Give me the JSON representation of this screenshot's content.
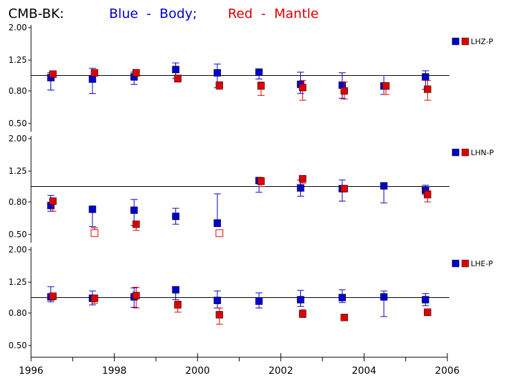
{
  "title": {
    "prefix": "CMB-BK:",
    "blue_text": "Blue  -  Body;",
    "red_text": "Red  -  Mantle"
  },
  "colors": {
    "body": "#0000cc",
    "mantle": "#dd0000",
    "axis": "#000000"
  },
  "chart_data": [
    {
      "type": "scatter",
      "label": "LHZ-P",
      "ylim": [
        0.5,
        2.0
      ],
      "yticks": [
        "2.00",
        "1.25",
        "0.80",
        "0.50"
      ],
      "reference_line": 1.0,
      "series": [
        {
          "name": "Body",
          "color": "#0000cc",
          "points": [
            {
              "x": 1996.5,
              "y": 0.97,
              "low": 0.81,
              "high": 1.04
            },
            {
              "x": 1997.5,
              "y": 0.95,
              "low": 0.77,
              "high": 1.11
            },
            {
              "x": 1998.5,
              "y": 0.98,
              "low": 0.88,
              "high": 1.05
            },
            {
              "x": 1999.5,
              "y": 1.09,
              "low": 0.96,
              "high": 1.2
            },
            {
              "x": 2000.5,
              "y": 1.04,
              "low": 0.84,
              "high": 1.18
            },
            {
              "x": 2001.5,
              "y": 1.05,
              "low": 0.95,
              "high": 1.1
            },
            {
              "x": 2002.5,
              "y": 0.88,
              "low": 0.77,
              "high": 1.05
            },
            {
              "x": 2003.5,
              "y": 0.87,
              "low": 0.72,
              "high": 1.04
            },
            {
              "x": 2004.5,
              "y": 0.86,
              "low": 0.76,
              "high": 1.0
            },
            {
              "x": 2005.5,
              "y": 0.98,
              "low": 0.82,
              "high": 1.07
            }
          ]
        },
        {
          "name": "Mantle",
          "color": "#dd0000",
          "points": [
            {
              "x": 1996.5,
              "y": 1.02,
              "low": 1.0,
              "high": 1.06
            },
            {
              "x": 1997.5,
              "y": 1.04,
              "low": 1.01,
              "high": 1.08
            },
            {
              "x": 1998.5,
              "y": 1.04,
              "low": 1.0,
              "high": 1.09
            },
            {
              "x": 1999.5,
              "y": 0.96,
              "low": 0.91,
              "high": 0.99
            },
            {
              "x": 2000.5,
              "y": 0.87,
              "low": 0.82,
              "high": 0.9
            },
            {
              "x": 2001.5,
              "y": 0.86,
              "low": 0.75,
              "high": 0.91
            },
            {
              "x": 2002.5,
              "y": 0.84,
              "low": 0.7,
              "high": 0.93
            },
            {
              "x": 2003.5,
              "y": 0.8,
              "low": 0.71,
              "high": 0.91
            },
            {
              "x": 2004.5,
              "y": 0.86,
              "low": 0.76,
              "high": 0.9
            },
            {
              "x": 2005.5,
              "y": 0.82,
              "low": 0.7,
              "high": 0.93
            }
          ]
        }
      ]
    },
    {
      "type": "scatter",
      "label": "LHN-P",
      "ylim": [
        0.5,
        2.0
      ],
      "yticks": [
        "2.00",
        "1.25",
        "0.80",
        "0.50"
      ],
      "reference_line": 1.0,
      "series": [
        {
          "name": "Body",
          "color": "#0000cc",
          "points": [
            {
              "x": 1996.5,
              "y": 0.76,
              "low": 0.7,
              "high": 0.88
            },
            {
              "x": 1997.5,
              "y": 0.72,
              "low": 0.56,
              "high": 0.72
            },
            {
              "x": 1998.5,
              "y": 0.71,
              "low": 0.57,
              "high": 0.83
            },
            {
              "x": 1999.5,
              "y": 0.65,
              "low": 0.58,
              "high": 0.73
            },
            {
              "x": 2000.5,
              "y": 0.59,
              "low": 0.56,
              "high": 0.9
            },
            {
              "x": 2001.5,
              "y": 1.09,
              "low": 0.92,
              "high": 1.12
            },
            {
              "x": 2002.5,
              "y": 0.98,
              "low": 0.87,
              "high": 1.1
            },
            {
              "x": 2003.5,
              "y": 0.97,
              "low": 0.81,
              "high": 1.1
            },
            {
              "x": 2004.5,
              "y": 1.01,
              "low": 0.79,
              "high": 1.04
            },
            {
              "x": 2005.5,
              "y": 0.95,
              "low": 0.89,
              "high": 1.02
            }
          ]
        },
        {
          "name": "Mantle",
          "color": "#dd0000",
          "points": [
            {
              "x": 1996.5,
              "y": 0.81,
              "low": 0.7,
              "high": 0.84
            },
            {
              "x": 1997.5,
              "y": 0.51,
              "low": 0.5,
              "high": 0.55,
              "hollow": true
            },
            {
              "x": 1998.5,
              "y": 0.58,
              "low": 0.53,
              "high": 0.6
            },
            {
              "x": 2000.5,
              "y": 0.51,
              "low": 0.5,
              "high": 0.53,
              "hollow": true
            },
            {
              "x": 2001.5,
              "y": 1.08,
              "low": 1.0,
              "high": 1.14
            },
            {
              "x": 2002.5,
              "y": 1.12,
              "low": 1.05,
              "high": 1.16
            },
            {
              "x": 2003.5,
              "y": 0.97,
              "low": 0.93,
              "high": 1.0
            },
            {
              "x": 2005.5,
              "y": 0.89,
              "low": 0.8,
              "high": 0.94
            }
          ]
        }
      ]
    },
    {
      "type": "scatter",
      "label": "LHE-P",
      "ylim": [
        0.5,
        2.0
      ],
      "yticks": [
        "2.00",
        "1.25",
        "0.80",
        "0.50"
      ],
      "reference_line": 1.0,
      "series": [
        {
          "name": "Body",
          "color": "#0000cc",
          "points": [
            {
              "x": 1996.5,
              "y": 1.01,
              "low": 0.94,
              "high": 1.17
            },
            {
              "x": 1997.5,
              "y": 0.99,
              "low": 0.9,
              "high": 1.1
            },
            {
              "x": 1998.5,
              "y": 1.01,
              "low": 0.87,
              "high": 1.15
            },
            {
              "x": 1999.5,
              "y": 1.12,
              "low": 0.97,
              "high": 1.15
            },
            {
              "x": 2000.5,
              "y": 0.96,
              "low": 0.86,
              "high": 1.1
            },
            {
              "x": 2001.5,
              "y": 0.95,
              "low": 0.86,
              "high": 1.07
            },
            {
              "x": 2002.5,
              "y": 0.97,
              "low": 0.88,
              "high": 1.11
            },
            {
              "x": 2003.5,
              "y": 1.0,
              "low": 0.93,
              "high": 1.12
            },
            {
              "x": 2004.5,
              "y": 1.01,
              "low": 0.76,
              "high": 1.1
            },
            {
              "x": 2005.5,
              "y": 0.97,
              "low": 0.89,
              "high": 1.06
            }
          ]
        },
        {
          "name": "Mantle",
          "color": "#dd0000",
          "points": [
            {
              "x": 1996.5,
              "y": 1.02,
              "low": 0.97,
              "high": 1.06
            },
            {
              "x": 1997.5,
              "y": 0.99,
              "low": 0.92,
              "high": 1.02
            },
            {
              "x": 1998.5,
              "y": 1.03,
              "low": 0.86,
              "high": 1.16
            },
            {
              "x": 1999.5,
              "y": 0.9,
              "low": 0.81,
              "high": 0.95
            },
            {
              "x": 2000.5,
              "y": 0.78,
              "low": 0.68,
              "high": 0.86
            },
            {
              "x": 2002.5,
              "y": 0.79,
              "low": 0.75,
              "high": 0.84
            },
            {
              "x": 2003.5,
              "y": 0.75,
              "low": 0.72,
              "high": 0.77
            },
            {
              "x": 2005.5,
              "y": 0.81,
              "low": 0.77,
              "high": 0.84
            }
          ]
        }
      ]
    }
  ],
  "x_axis": {
    "xlim": [
      1996,
      2006
    ],
    "major_ticks": [
      1996,
      1998,
      2000,
      2002,
      2004,
      2006
    ],
    "minor_ticks": [
      1997,
      1999,
      2001,
      2003,
      2005
    ],
    "tick_labels": [
      "1996",
      "1998",
      "2000",
      "2002",
      "2004",
      "2006"
    ]
  }
}
